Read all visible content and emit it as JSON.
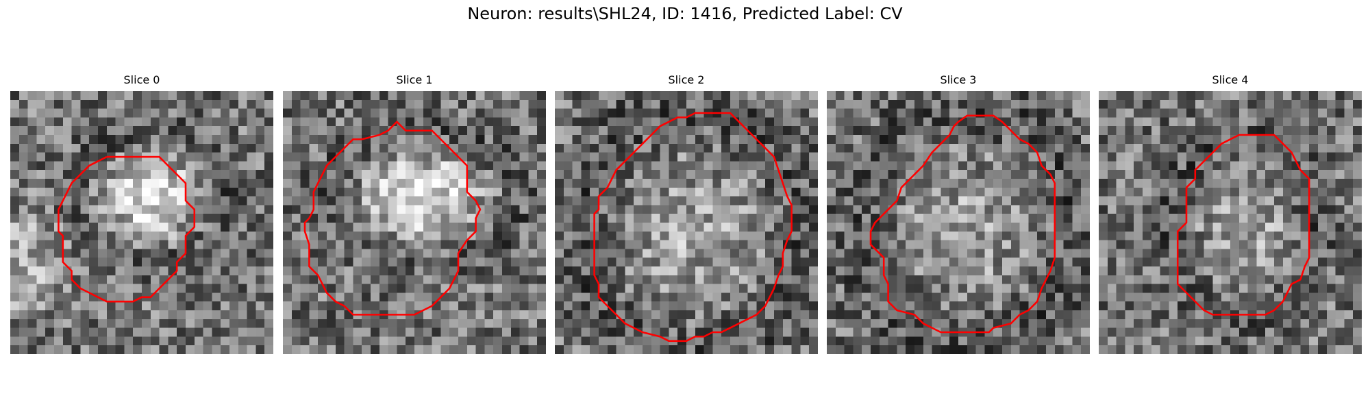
{
  "figure": {
    "title": "Neuron: results\\SHL24, ID: 1416, Predicted Label: CV",
    "contour_color": "#ff0000",
    "panels": [
      {
        "title": "Slice 0",
        "seed": 11,
        "blob": {
          "cx": 15.5,
          "cy": 11.5,
          "rx": 6.5,
          "ry": 6.0,
          "gain": 0.45
        },
        "bright_left": true,
        "contour": [
          [
            11,
            7.5
          ],
          [
            17,
            7.5
          ],
          [
            18,
            8.5
          ],
          [
            19,
            9.5
          ],
          [
            20,
            10.5
          ],
          [
            20,
            12.5
          ],
          [
            21,
            13.5
          ],
          [
            21,
            15.5
          ],
          [
            20,
            16.5
          ],
          [
            20,
            18.5
          ],
          [
            19,
            19.5
          ],
          [
            19,
            20.5
          ],
          [
            18,
            21.5
          ],
          [
            17,
            22.5
          ],
          [
            16,
            23.5
          ],
          [
            15,
            23.5
          ],
          [
            14,
            24
          ],
          [
            11,
            24
          ],
          [
            10,
            23.5
          ],
          [
            9,
            23
          ],
          [
            8,
            22.5
          ],
          [
            7,
            21.5
          ],
          [
            7,
            20.5
          ],
          [
            6,
            19.5
          ],
          [
            6,
            16.5
          ],
          [
            5.5,
            16
          ],
          [
            5.5,
            13.5
          ],
          [
            6,
            12.5
          ],
          [
            6.5,
            11.5
          ],
          [
            7,
            10.5
          ],
          [
            8,
            9.5
          ],
          [
            9,
            8.5
          ],
          [
            10,
            8
          ],
          [
            11,
            7.5
          ]
        ]
      },
      {
        "title": "Slice 1",
        "seed": 23,
        "blob": {
          "cx": 15.5,
          "cy": 11.5,
          "rx": 8.5,
          "ry": 6.0,
          "gain": 0.45
        },
        "bright_left": false,
        "contour": [
          [
            9,
            5.5
          ],
          [
            11,
            5
          ],
          [
            12,
            4.5
          ],
          [
            13,
            3.5
          ],
          [
            14,
            4.5
          ],
          [
            17,
            4.5
          ],
          [
            18,
            5.5
          ],
          [
            19,
            6.5
          ],
          [
            20,
            7.5
          ],
          [
            21,
            8.5
          ],
          [
            21,
            11.5
          ],
          [
            22,
            12.5
          ],
          [
            22.5,
            13.5
          ],
          [
            22,
            14.5
          ],
          [
            22,
            16
          ],
          [
            21,
            17
          ],
          [
            20,
            18.5
          ],
          [
            20,
            20.5
          ],
          [
            19.5,
            21.5
          ],
          [
            19,
            22.5
          ],
          [
            18,
            23.5
          ],
          [
            17,
            24.5
          ],
          [
            16,
            25
          ],
          [
            15,
            25.5
          ],
          [
            8,
            25.5
          ],
          [
            7,
            24.5
          ],
          [
            6,
            24
          ],
          [
            5,
            23
          ],
          [
            4.5,
            22
          ],
          [
            4,
            21
          ],
          [
            3,
            20
          ],
          [
            3,
            17.5
          ],
          [
            2.5,
            16
          ],
          [
            2.5,
            15
          ],
          [
            3,
            14.5
          ],
          [
            3.5,
            13.5
          ],
          [
            3.5,
            11.5
          ],
          [
            4,
            10.5
          ],
          [
            4.5,
            9.5
          ],
          [
            5,
            8.5
          ],
          [
            6,
            7.5
          ],
          [
            7,
            6.5
          ],
          [
            8,
            5.5
          ],
          [
            9,
            5.5
          ]
        ]
      },
      {
        "title": "Slice 2",
        "seed": 37,
        "blob": {
          "cx": 15.0,
          "cy": 15.5,
          "rx": 10.0,
          "ry": 11.0,
          "gain": 0.2
        },
        "bright_left": false,
        "contour": [
          [
            13,
            3.5
          ],
          [
            14,
            3
          ],
          [
            15,
            3
          ],
          [
            16,
            2.5
          ],
          [
            20,
            2.5
          ],
          [
            21,
            3.5
          ],
          [
            22,
            4.5
          ],
          [
            23,
            5.5
          ],
          [
            24,
            6.5
          ],
          [
            25,
            7.5
          ],
          [
            25.5,
            9
          ],
          [
            26,
            10.5
          ],
          [
            26.5,
            12
          ],
          [
            27,
            13
          ],
          [
            27,
            16
          ],
          [
            26.5,
            17
          ],
          [
            26,
            18.5
          ],
          [
            26,
            20
          ],
          [
            25.5,
            21
          ],
          [
            25,
            22.5
          ],
          [
            24.5,
            23.5
          ],
          [
            24,
            24.5
          ],
          [
            23,
            25.5
          ],
          [
            22,
            26
          ],
          [
            20,
            27
          ],
          [
            19,
            27.5
          ],
          [
            18,
            27.5
          ],
          [
            17,
            28
          ],
          [
            16,
            28
          ],
          [
            15,
            28.5
          ],
          [
            13,
            28.5
          ],
          [
            12,
            28
          ],
          [
            10,
            27.5
          ],
          [
            9,
            27
          ],
          [
            8,
            26.5
          ],
          [
            7,
            25.5
          ],
          [
            6,
            24.5
          ],
          [
            5,
            23.5
          ],
          [
            5,
            22
          ],
          [
            4.5,
            21
          ],
          [
            4.5,
            14
          ],
          [
            5,
            13.5
          ],
          [
            5,
            12
          ],
          [
            6,
            11
          ],
          [
            6.5,
            10
          ],
          [
            7,
            9
          ],
          [
            8,
            8
          ],
          [
            9,
            7
          ],
          [
            10,
            6
          ],
          [
            11,
            5
          ],
          [
            12,
            4
          ],
          [
            13,
            3.5
          ]
        ]
      },
      {
        "title": "Slice 3",
        "seed": 51,
        "blob": {
          "cx": 15.5,
          "cy": 15.0,
          "rx": 9.5,
          "ry": 10.5,
          "gain": 0.18
        },
        "bright_left": false,
        "contour": [
          [
            15,
            3.5
          ],
          [
            16,
            2.8
          ],
          [
            19,
            2.8
          ],
          [
            20,
            3.5
          ],
          [
            21,
            4.5
          ],
          [
            22,
            5.5
          ],
          [
            23,
            6
          ],
          [
            24,
            7
          ],
          [
            24.5,
            8.5
          ],
          [
            25.5,
            9.5
          ],
          [
            26,
            10.5
          ],
          [
            26,
            19
          ],
          [
            25.5,
            20.5
          ],
          [
            25,
            21.5
          ],
          [
            24.5,
            22.5
          ],
          [
            24,
            24
          ],
          [
            23,
            25
          ],
          [
            22,
            25.5
          ],
          [
            21,
            26.5
          ],
          [
            19,
            27
          ],
          [
            18.5,
            27.5
          ],
          [
            13,
            27.5
          ],
          [
            12,
            27
          ],
          [
            11,
            26.5
          ],
          [
            10,
            25.5
          ],
          [
            8,
            25
          ],
          [
            7,
            24
          ],
          [
            7,
            22
          ],
          [
            6.5,
            21
          ],
          [
            6.5,
            19
          ],
          [
            6,
            18.5
          ],
          [
            5,
            17.5
          ],
          [
            5,
            16
          ],
          [
            5.5,
            15
          ],
          [
            6,
            14.5
          ],
          [
            7,
            13.5
          ],
          [
            8,
            12.5
          ],
          [
            8.5,
            11
          ],
          [
            9,
            10.5
          ],
          [
            10,
            9.5
          ],
          [
            11,
            8.5
          ],
          [
            12,
            7
          ],
          [
            13,
            6
          ],
          [
            14,
            5
          ],
          [
            14.5,
            4
          ],
          [
            15,
            3.5
          ]
        ]
      },
      {
        "title": "Slice 4",
        "seed": 67,
        "blob": {
          "cx": 16.0,
          "cy": 15.0,
          "rx": 6.5,
          "ry": 8.0,
          "gain": 0.2
        },
        "bright_left": false,
        "contour": [
          [
            15,
            5.5
          ],
          [
            16,
            5
          ],
          [
            20,
            5
          ],
          [
            21,
            6
          ],
          [
            22,
            7
          ],
          [
            22.5,
            8
          ],
          [
            23,
            9
          ],
          [
            24,
            10
          ],
          [
            24,
            19
          ],
          [
            23.5,
            20
          ],
          [
            23,
            21.5
          ],
          [
            22,
            22
          ],
          [
            21.5,
            23
          ],
          [
            21,
            24
          ],
          [
            20,
            25
          ],
          [
            19,
            25.5
          ],
          [
            13,
            25.5
          ],
          [
            12,
            25
          ],
          [
            11,
            24
          ],
          [
            10,
            23
          ],
          [
            9,
            22
          ],
          [
            9,
            16
          ],
          [
            10,
            15
          ],
          [
            10,
            11
          ],
          [
            11,
            10
          ],
          [
            11,
            9
          ],
          [
            12,
            8
          ],
          [
            13,
            7
          ],
          [
            14,
            6
          ],
          [
            15,
            5.5
          ]
        ]
      }
    ]
  }
}
